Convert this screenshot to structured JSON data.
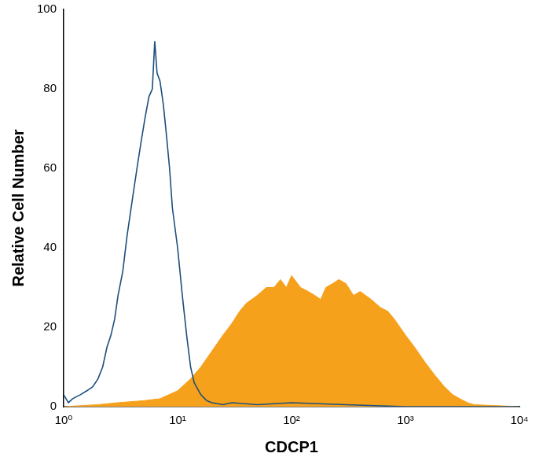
{
  "chart_data": {
    "type": "line",
    "xlabel": "CDCP1",
    "ylabel": "Relative Cell Number",
    "log": "x",
    "grid": false,
    "xlim": [
      1,
      10000
    ],
    "xticks": [
      {
        "value": 1,
        "label": "10⁰"
      },
      {
        "value": 10,
        "label": "10¹"
      },
      {
        "value": 100,
        "label": "10²"
      },
      {
        "value": 1000,
        "label": "10³"
      },
      {
        "value": 10000,
        "label": "10⁴"
      }
    ],
    "ylim": [
      0,
      100
    ],
    "yticks": [
      0,
      20,
      40,
      60,
      80,
      100
    ],
    "series": [
      {
        "color": "#1d4f7c",
        "x": [
          1,
          1.1,
          1.2,
          1.4,
          1.6,
          1.8,
          2,
          2.2,
          2.4,
          2.6,
          2.8,
          3,
          3.3,
          3.6,
          4,
          4.4,
          4.8,
          5.2,
          5.6,
          6,
          6.3,
          6.6,
          7,
          7.5,
          8,
          8.5,
          9,
          10,
          11,
          12,
          13,
          14,
          16,
          18,
          20,
          25,
          30,
          50,
          100,
          300,
          1000,
          10000
        ],
        "values": [
          3,
          1,
          2,
          3,
          4,
          5,
          7,
          10,
          15,
          18,
          22,
          28,
          34,
          43,
          52,
          60,
          67,
          73,
          78,
          80,
          92,
          84,
          82,
          76,
          68,
          60,
          50,
          40,
          28,
          18,
          10,
          6,
          3,
          1.5,
          1,
          0.5,
          1,
          0.5,
          1,
          0.5,
          0,
          0
        ]
      },
      {
        "color": "#f6a11c",
        "fill": true,
        "x": [
          1,
          2,
          3,
          5,
          7,
          10,
          13,
          16,
          20,
          25,
          30,
          35,
          40,
          50,
          60,
          70,
          80,
          90,
          100,
          120,
          140,
          160,
          180,
          200,
          230,
          260,
          300,
          350,
          400,
          500,
          600,
          700,
          800,
          1000,
          1200,
          1500,
          1800,
          2200,
          2600,
          3000,
          3500,
          4000,
          10000
        ],
        "values": [
          0,
          0.5,
          1,
          1.5,
          2,
          4,
          7,
          10,
          14,
          18,
          21,
          24,
          26,
          28,
          30,
          30,
          32,
          30,
          33,
          30,
          29,
          28,
          27,
          30,
          31,
          32,
          31,
          28,
          29,
          27,
          25,
          24,
          22,
          18,
          15,
          11,
          8,
          5,
          3,
          2,
          1,
          0.5,
          0
        ]
      }
    ]
  }
}
